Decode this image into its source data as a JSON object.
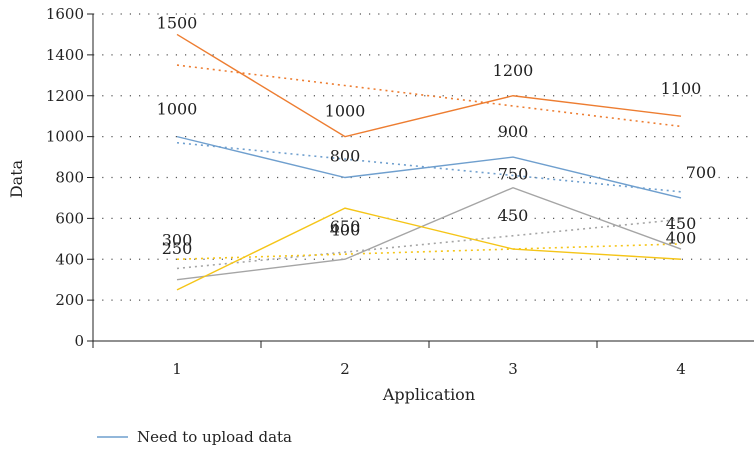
{
  "chart_data": {
    "type": "line",
    "title": "",
    "xlabel": "Application",
    "ylabel": "Data",
    "x": [
      1,
      2,
      3,
      4
    ],
    "xticks": [
      "1",
      "2",
      "3",
      "4"
    ],
    "ylim": [
      0,
      1600
    ],
    "yticks": [
      "0",
      "200",
      "400",
      "600",
      "800",
      "1000",
      "1200",
      "1400",
      "1600"
    ],
    "grid": "horizontal dotted",
    "trendlines": "linear dotted per series",
    "legend_position": "bottom-left",
    "series": [
      {
        "name": "Need to upload data",
        "color": "#6f9fce",
        "values": [
          1000,
          800,
          900,
          700
        ],
        "labels": [
          "1000",
          "800",
          "900",
          "700"
        ]
      },
      {
        "name": "",
        "color": "#ed7d31",
        "values": [
          1500,
          1000,
          1200,
          1100
        ],
        "labels": [
          "1500",
          "1000",
          "1200",
          "1100"
        ]
      },
      {
        "name": "",
        "color": "#a5a5a5",
        "values": [
          300,
          400,
          750,
          450
        ],
        "labels": [
          "300",
          "400",
          "750",
          "450"
        ]
      },
      {
        "name": "",
        "color": "#f5c518",
        "values": [
          250,
          650,
          450,
          400
        ],
        "labels": [
          "250",
          "650",
          "450",
          "400"
        ]
      }
    ]
  }
}
